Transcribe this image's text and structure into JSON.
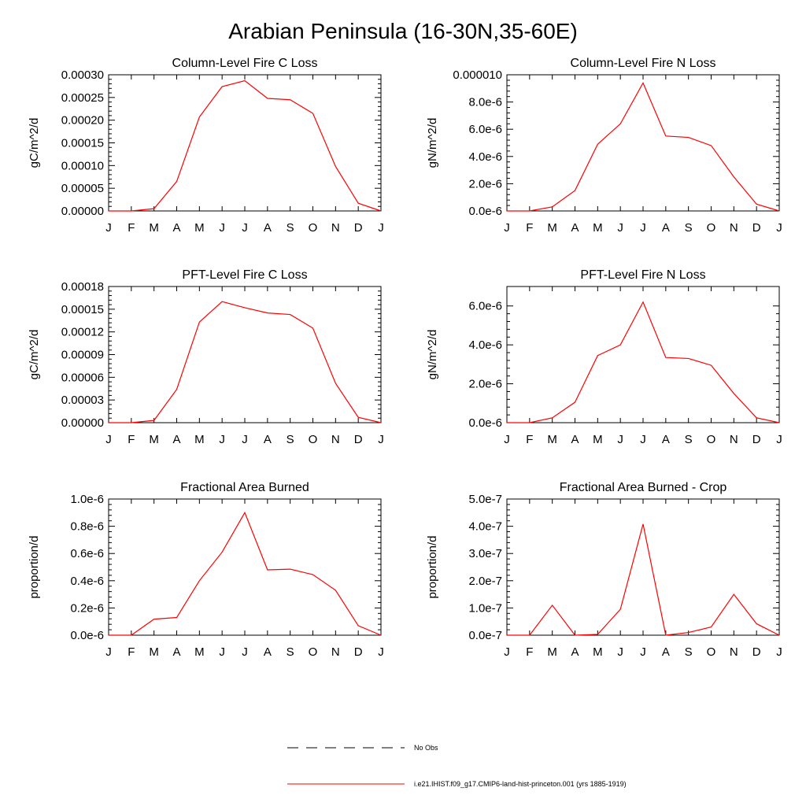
{
  "title": "Arabian Peninsula (16-30N,35-60E)",
  "chart_data": [
    {
      "type": "line",
      "title": "Column-Level Fire C Loss",
      "ylabel": "gC/m^2/d",
      "categories": [
        "J",
        "F",
        "M",
        "A",
        "M",
        "J",
        "J",
        "A",
        "S",
        "O",
        "N",
        "D",
        "J"
      ],
      "ylim": [
        0,
        0.0003
      ],
      "yticks": [
        0,
        5e-05,
        0.0001,
        0.00015,
        0.0002,
        0.00025,
        0.0003
      ],
      "yticklabels": [
        "0.00000",
        "0.00005",
        "0.00010",
        "0.00015",
        "0.00020",
        "0.00025",
        "0.00030"
      ],
      "series": [
        {
          "name": "i.e21.IHIST.f09_g17.CMIP6-land-hist-princeton.001 (yrs 1885-1919)",
          "values": [
            0,
            0,
            5e-06,
            6.5e-05,
            0.000207,
            0.000274,
            0.000287,
            0.000248,
            0.000245,
            0.000215,
            9.8e-05,
            1.7e-05,
            0
          ]
        }
      ]
    },
    {
      "type": "line",
      "title": "Column-Level Fire N Loss",
      "ylabel": "gN/m^2/d",
      "categories": [
        "J",
        "F",
        "M",
        "A",
        "M",
        "J",
        "J",
        "A",
        "S",
        "O",
        "N",
        "D",
        "J"
      ],
      "ylim": [
        0,
        1e-05
      ],
      "yticks": [
        0,
        2e-06,
        4e-06,
        6e-06,
        8e-06,
        1e-05
      ],
      "yticklabels": [
        "0.0e-6",
        "2.0e-6",
        "4.0e-6",
        "6.0e-6",
        "8.0e-6",
        "0.000010"
      ],
      "series": [
        {
          "name": "i.e21.IHIST.f09_g17.CMIP6-land-hist-princeton.001 (yrs 1885-1919)",
          "values": [
            0,
            0,
            3e-07,
            1.5e-06,
            4.9e-06,
            6.4e-06,
            9.4e-06,
            5.5e-06,
            5.4e-06,
            4.8e-06,
            2.5e-06,
            5e-07,
            0
          ]
        }
      ]
    },
    {
      "type": "line",
      "title": "PFT-Level Fire C Loss",
      "ylabel": "gC/m^2/d",
      "categories": [
        "J",
        "F",
        "M",
        "A",
        "M",
        "J",
        "J",
        "A",
        "S",
        "O",
        "N",
        "D",
        "J"
      ],
      "ylim": [
        0,
        0.00018
      ],
      "yticks": [
        0,
        3e-05,
        6e-05,
        9e-05,
        0.00012,
        0.00015,
        0.00018
      ],
      "yticklabels": [
        "0.00000",
        "0.00003",
        "0.00006",
        "0.00009",
        "0.00012",
        "0.00015",
        "0.00018"
      ],
      "series": [
        {
          "name": "i.e21.IHIST.f09_g17.CMIP6-land-hist-princeton.001 (yrs 1885-1919)",
          "values": [
            0,
            0,
            3e-06,
            4.4e-05,
            0.000133,
            0.00016,
            0.000152,
            0.000145,
            0.000143,
            0.000125,
            5.2e-05,
            7e-06,
            0
          ]
        }
      ]
    },
    {
      "type": "line",
      "title": "PFT-Level Fire N Loss",
      "ylabel": "gN/m^2/d",
      "categories": [
        "J",
        "F",
        "M",
        "A",
        "M",
        "J",
        "J",
        "A",
        "S",
        "O",
        "N",
        "D",
        "J"
      ],
      "ylim": [
        0,
        7e-06
      ],
      "yticks": [
        0,
        2e-06,
        4e-06,
        6e-06
      ],
      "yticklabels": [
        "0.0e-6",
        "2.0e-6",
        "4.0e-6",
        "6.0e-6"
      ],
      "series": [
        {
          "name": "i.e21.IHIST.f09_g17.CMIP6-land-hist-princeton.001 (yrs 1885-1919)",
          "values": [
            0,
            0,
            2.5e-07,
            1.05e-06,
            3.45e-06,
            4e-06,
            6.2e-06,
            3.35e-06,
            3.3e-06,
            2.95e-06,
            1.5e-06,
            2.5e-07,
            0
          ]
        }
      ]
    },
    {
      "type": "line",
      "title": "Fractional Area Burned",
      "ylabel": "proportion/d",
      "categories": [
        "J",
        "F",
        "M",
        "A",
        "M",
        "J",
        "J",
        "A",
        "S",
        "O",
        "N",
        "D",
        "J"
      ],
      "ylim": [
        0,
        1e-06
      ],
      "yticks": [
        0,
        2e-07,
        4e-07,
        6e-07,
        8e-07,
        1e-06
      ],
      "yticklabels": [
        "0.0e-6",
        "0.2e-6",
        "0.4e-6",
        "0.6e-6",
        "0.8e-6",
        "1.0e-6"
      ],
      "series": [
        {
          "name": "i.e21.IHIST.f09_g17.CMIP6-land-hist-princeton.001 (yrs 1885-1919)",
          "values": [
            0,
            0,
            1.18e-07,
            1.3e-07,
            4e-07,
            6.1e-07,
            9e-07,
            4.8e-07,
            4.85e-07,
            4.45e-07,
            3.3e-07,
            7e-08,
            0
          ]
        }
      ]
    },
    {
      "type": "line",
      "title": "Fractional Area Burned - Crop",
      "ylabel": "proportion/d",
      "categories": [
        "J",
        "F",
        "M",
        "A",
        "M",
        "J",
        "J",
        "A",
        "S",
        "O",
        "N",
        "D",
        "J"
      ],
      "ylim": [
        0,
        5e-07
      ],
      "yticks": [
        0,
        1e-07,
        2e-07,
        3e-07,
        4e-07,
        5e-07
      ],
      "yticklabels": [
        "0.0e-7",
        "1.0e-7",
        "2.0e-7",
        "3.0e-7",
        "4.0e-7",
        "5.0e-7"
      ],
      "series": [
        {
          "name": "i.e21.IHIST.f09_g17.CMIP6-land-hist-princeton.001 (yrs 1885-1919)",
          "values": [
            0,
            0,
            1.1e-07,
            0,
            3e-09,
            9.5e-08,
            4.08e-07,
            0,
            1e-08,
            3e-08,
            1.5e-07,
            4.2e-08,
            0
          ]
        }
      ]
    }
  ],
  "legend": {
    "placement": "bottom-center",
    "items": [
      {
        "label": "No Obs",
        "style": "dashed",
        "color": "#000000"
      },
      {
        "label": "i.e21.IHIST.f09_g17.CMIP6-land-hist-princeton.001 (yrs 1885-1919)",
        "style": "solid",
        "color": "#ff0000"
      }
    ]
  },
  "colors": {
    "series": "#ff0000",
    "axes": "#000000",
    "background": "#ffffff"
  }
}
